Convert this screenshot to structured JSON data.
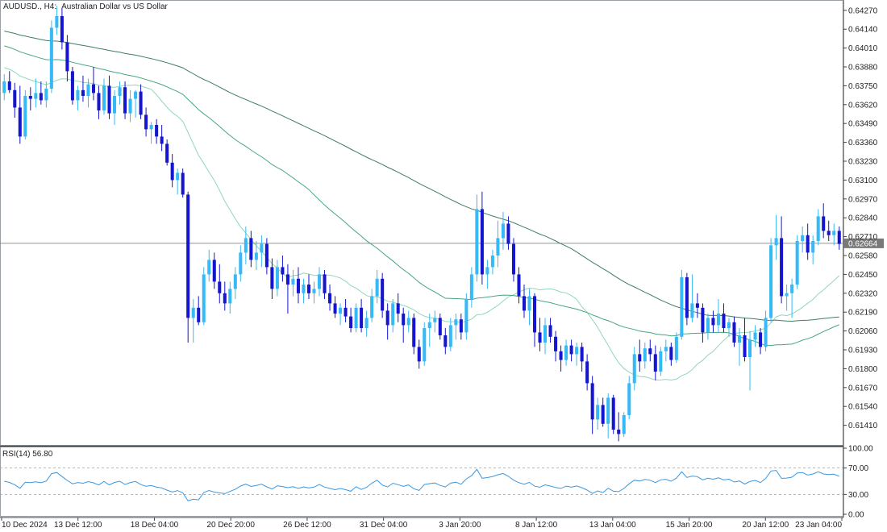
{
  "header": {
    "symbol": "AUDUSD.,",
    "timeframe": "H4:",
    "description": "Australian Dollar vs US Dollar"
  },
  "chart_data": [
    {
      "type": "candlestick",
      "title": "AUDUSD., H4: Australian Dollar vs US Dollar",
      "ylim": [
        0.6128,
        0.6433
      ],
      "y_ticks": [
        "0.64270",
        "0.64140",
        "0.64010",
        "0.63880",
        "0.63750",
        "0.63620",
        "0.63490",
        "0.63360",
        "0.63230",
        "0.63100",
        "0.62970",
        "0.62840",
        "0.62710",
        "0.62580",
        "0.62450",
        "0.62320",
        "0.62190",
        "0.62060",
        "0.61930",
        "0.61800",
        "0.61670",
        "0.61540",
        "0.61410"
      ],
      "x_ticks": [
        "10 Dec 2024",
        "13 Dec 12:00",
        "18 Dec 04:00",
        "20 Dec 20:00",
        "26 Dec 12:00",
        "31 Dec 04:00",
        "3 Jan 20:00",
        "8 Jan 12:00",
        "13 Jan 04:00",
        "15 Jan 20:00",
        "20 Jan 12:00",
        "23 Jan 04:00"
      ],
      "current_price": "0.62664",
      "bull_color": "#35baf6",
      "bear_color": "#1515d0",
      "ohlc": [
        [
          0.637,
          0.6383,
          0.6365,
          0.6378
        ],
        [
          0.6378,
          0.6385,
          0.637,
          0.6372
        ],
        [
          0.6372,
          0.6377,
          0.6353,
          0.636
        ],
        [
          0.636,
          0.6375,
          0.6335,
          0.634
        ],
        [
          0.634,
          0.6372,
          0.6338,
          0.6368
        ],
        [
          0.6368,
          0.6374,
          0.6358,
          0.6366
        ],
        [
          0.6366,
          0.638,
          0.636,
          0.637
        ],
        [
          0.637,
          0.6378,
          0.6362,
          0.6365
        ],
        [
          0.6365,
          0.6378,
          0.636,
          0.6373
        ],
        [
          0.6373,
          0.642,
          0.637,
          0.6415
        ],
        [
          0.6415,
          0.643,
          0.641,
          0.6423
        ],
        [
          0.6423,
          0.6428,
          0.64,
          0.6405
        ],
        [
          0.6405,
          0.641,
          0.6378,
          0.6385
        ],
        [
          0.6385,
          0.6388,
          0.6362,
          0.6365
        ],
        [
          0.6365,
          0.6375,
          0.6358,
          0.6372
        ],
        [
          0.6372,
          0.6382,
          0.6364,
          0.6368
        ],
        [
          0.6368,
          0.638,
          0.636,
          0.6376
        ],
        [
          0.6376,
          0.6388,
          0.6365,
          0.637
        ],
        [
          0.637,
          0.6375,
          0.6352,
          0.6358
        ],
        [
          0.6358,
          0.638,
          0.6355,
          0.6375
        ],
        [
          0.6375,
          0.6382,
          0.6352,
          0.6356
        ],
        [
          0.6356,
          0.6372,
          0.6348,
          0.6368
        ],
        [
          0.6368,
          0.6378,
          0.6362,
          0.6374
        ],
        [
          0.6374,
          0.6378,
          0.6352,
          0.6356
        ],
        [
          0.6356,
          0.6372,
          0.635,
          0.6366
        ],
        [
          0.6366,
          0.6372,
          0.6353,
          0.6371
        ],
        [
          0.6371,
          0.6376,
          0.6352,
          0.6355
        ],
        [
          0.6355,
          0.636,
          0.634,
          0.6345
        ],
        [
          0.6345,
          0.635,
          0.6335,
          0.6348
        ],
        [
          0.6348,
          0.6352,
          0.6335,
          0.634
        ],
        [
          0.634,
          0.6348,
          0.633,
          0.6335
        ],
        [
          0.6335,
          0.6338,
          0.632,
          0.6322
        ],
        [
          0.6322,
          0.6328,
          0.6305,
          0.631
        ],
        [
          0.631,
          0.6318,
          0.63,
          0.6315
        ],
        [
          0.6315,
          0.6318,
          0.6298,
          0.63
        ],
        [
          0.63,
          0.6302,
          0.6198,
          0.6215
        ],
        [
          0.6215,
          0.6228,
          0.6198,
          0.6222
        ],
        [
          0.6222,
          0.623,
          0.621,
          0.6212
        ],
        [
          0.6212,
          0.625,
          0.621,
          0.6245
        ],
        [
          0.6245,
          0.6262,
          0.624,
          0.6255
        ],
        [
          0.6255,
          0.626,
          0.6235,
          0.624
        ],
        [
          0.624,
          0.6252,
          0.6225,
          0.6232
        ],
        [
          0.6232,
          0.624,
          0.622,
          0.6225
        ],
        [
          0.6225,
          0.624,
          0.6218,
          0.6235
        ],
        [
          0.6235,
          0.625,
          0.6228,
          0.6245
        ],
        [
          0.6245,
          0.6265,
          0.624,
          0.626
        ],
        [
          0.626,
          0.6278,
          0.6252,
          0.627
        ],
        [
          0.627,
          0.6275,
          0.625,
          0.6255
        ],
        [
          0.6255,
          0.6268,
          0.6248,
          0.626
        ],
        [
          0.626,
          0.6272,
          0.625,
          0.6266
        ],
        [
          0.6266,
          0.627,
          0.6245,
          0.625
        ],
        [
          0.625,
          0.6256,
          0.6228,
          0.6235
        ],
        [
          0.6235,
          0.6255,
          0.623,
          0.625
        ],
        [
          0.625,
          0.6258,
          0.624,
          0.6245
        ],
        [
          0.6245,
          0.6252,
          0.6218,
          0.6238
        ],
        [
          0.6238,
          0.6248,
          0.623,
          0.6242
        ],
        [
          0.6242,
          0.625,
          0.6225,
          0.6232
        ],
        [
          0.6232,
          0.6242,
          0.6225,
          0.6238
        ],
        [
          0.6238,
          0.6245,
          0.6228,
          0.6232
        ],
        [
          0.6232,
          0.624,
          0.6225,
          0.6235
        ],
        [
          0.6235,
          0.625,
          0.623,
          0.6245
        ],
        [
          0.6245,
          0.6248,
          0.6228,
          0.6232
        ],
        [
          0.6232,
          0.6238,
          0.622,
          0.6225
        ],
        [
          0.6225,
          0.623,
          0.6215,
          0.6218
        ],
        [
          0.6218,
          0.6225,
          0.621,
          0.6222
        ],
        [
          0.6222,
          0.6228,
          0.6212,
          0.6216
        ],
        [
          0.6216,
          0.6222,
          0.6205,
          0.6208
        ],
        [
          0.6208,
          0.6225,
          0.6205,
          0.6222
        ],
        [
          0.6222,
          0.6228,
          0.6205,
          0.6208
        ],
        [
          0.6208,
          0.622,
          0.6202,
          0.6215
        ],
        [
          0.6215,
          0.6235,
          0.6212,
          0.623
        ],
        [
          0.623,
          0.6248,
          0.6225,
          0.6242
        ],
        [
          0.6242,
          0.6246,
          0.6215,
          0.622
        ],
        [
          0.622,
          0.6225,
          0.62,
          0.621
        ],
        [
          0.621,
          0.6228,
          0.6205,
          0.6225
        ],
        [
          0.6225,
          0.6232,
          0.6212,
          0.6218
        ],
        [
          0.6218,
          0.6222,
          0.6198,
          0.621
        ],
        [
          0.621,
          0.622,
          0.6205,
          0.6215
        ],
        [
          0.6215,
          0.6218,
          0.619,
          0.6195
        ],
        [
          0.6195,
          0.62,
          0.618,
          0.6185
        ],
        [
          0.6185,
          0.6212,
          0.6182,
          0.6208
        ],
        [
          0.6208,
          0.6218,
          0.6195,
          0.6212
        ],
        [
          0.6212,
          0.622,
          0.6205,
          0.6215
        ],
        [
          0.6215,
          0.6218,
          0.62,
          0.6203
        ],
        [
          0.6203,
          0.6208,
          0.619,
          0.6195
        ],
        [
          0.6195,
          0.6215,
          0.6192,
          0.621
        ],
        [
          0.621,
          0.6218,
          0.62,
          0.6214
        ],
        [
          0.6214,
          0.6218,
          0.62,
          0.6205
        ],
        [
          0.6205,
          0.6232,
          0.62,
          0.6228
        ],
        [
          0.6228,
          0.625,
          0.6222,
          0.6245
        ],
        [
          0.6245,
          0.63,
          0.624,
          0.629
        ],
        [
          0.629,
          0.6302,
          0.6238,
          0.6245
        ],
        [
          0.6245,
          0.6255,
          0.6235,
          0.625
        ],
        [
          0.625,
          0.6262,
          0.6245,
          0.6258
        ],
        [
          0.6258,
          0.6282,
          0.625,
          0.627
        ],
        [
          0.627,
          0.6288,
          0.6262,
          0.628
        ],
        [
          0.628,
          0.6285,
          0.6262,
          0.6266
        ],
        [
          0.6266,
          0.627,
          0.624,
          0.6245
        ],
        [
          0.6245,
          0.625,
          0.6225,
          0.623
        ],
        [
          0.623,
          0.6238,
          0.6215,
          0.622
        ],
        [
          0.622,
          0.6235,
          0.621,
          0.623
        ],
        [
          0.623,
          0.6232,
          0.6195,
          0.6205
        ],
        [
          0.6205,
          0.6215,
          0.6192,
          0.6198
        ],
        [
          0.6198,
          0.6215,
          0.619,
          0.621
        ],
        [
          0.621,
          0.6215,
          0.6198,
          0.6202
        ],
        [
          0.6202,
          0.6206,
          0.6185,
          0.6192
        ],
        [
          0.6192,
          0.6196,
          0.6178,
          0.6186
        ],
        [
          0.6186,
          0.62,
          0.6182,
          0.6196
        ],
        [
          0.6196,
          0.62,
          0.6185,
          0.619
        ],
        [
          0.619,
          0.6198,
          0.6182,
          0.6195
        ],
        [
          0.6195,
          0.6198,
          0.6178,
          0.6185
        ],
        [
          0.6185,
          0.619,
          0.6165,
          0.617
        ],
        [
          0.617,
          0.6175,
          0.6135,
          0.6145
        ],
        [
          0.6145,
          0.616,
          0.6138,
          0.6155
        ],
        [
          0.6155,
          0.616,
          0.614,
          0.6142
        ],
        [
          0.6142,
          0.6163,
          0.6132,
          0.616
        ],
        [
          0.616,
          0.6162,
          0.6135,
          0.6138
        ],
        [
          0.6138,
          0.615,
          0.613,
          0.6135
        ],
        [
          0.6135,
          0.615,
          0.6133,
          0.6148
        ],
        [
          0.6148,
          0.6175,
          0.6145,
          0.617
        ],
        [
          0.617,
          0.6195,
          0.6165,
          0.619
        ],
        [
          0.619,
          0.62,
          0.6178,
          0.6185
        ],
        [
          0.6185,
          0.6198,
          0.618,
          0.6194
        ],
        [
          0.6194,
          0.62,
          0.6185,
          0.619
        ],
        [
          0.619,
          0.6196,
          0.6172,
          0.6178
        ],
        [
          0.6178,
          0.6195,
          0.6175,
          0.6192
        ],
        [
          0.6192,
          0.62,
          0.6185,
          0.6195
        ],
        [
          0.6195,
          0.6198,
          0.6182,
          0.6186
        ],
        [
          0.6186,
          0.6205,
          0.6184,
          0.6202
        ],
        [
          0.6202,
          0.6248,
          0.62,
          0.6243
        ],
        [
          0.6243,
          0.6246,
          0.621,
          0.6215
        ],
        [
          0.6215,
          0.6245,
          0.6212,
          0.6225
        ],
        [
          0.6225,
          0.6232,
          0.6215,
          0.6222
        ],
        [
          0.6222,
          0.6225,
          0.6198,
          0.6205
        ],
        [
          0.6205,
          0.6218,
          0.62,
          0.6215
        ],
        [
          0.6215,
          0.622,
          0.6205,
          0.621
        ],
        [
          0.621,
          0.6228,
          0.6205,
          0.6218
        ],
        [
          0.6218,
          0.6225,
          0.6205,
          0.6208
        ],
        [
          0.6208,
          0.6215,
          0.6202,
          0.6212
        ],
        [
          0.6212,
          0.6216,
          0.6195,
          0.6198
        ],
        [
          0.6198,
          0.6208,
          0.6182,
          0.6203
        ],
        [
          0.6203,
          0.6215,
          0.6185,
          0.6188
        ],
        [
          0.6188,
          0.6206,
          0.6165,
          0.62
        ],
        [
          0.62,
          0.621,
          0.6195,
          0.6205
        ],
        [
          0.6205,
          0.6208,
          0.619,
          0.6195
        ],
        [
          0.6195,
          0.622,
          0.6192,
          0.6215
        ],
        [
          0.6215,
          0.627,
          0.6212,
          0.6265
        ],
        [
          0.6265,
          0.6286,
          0.6255,
          0.627
        ],
        [
          0.627,
          0.6285,
          0.6225,
          0.623
        ],
        [
          0.623,
          0.6238,
          0.622,
          0.6232
        ],
        [
          0.6232,
          0.6242,
          0.6215,
          0.6238
        ],
        [
          0.6238,
          0.6272,
          0.6235,
          0.6268
        ],
        [
          0.6268,
          0.6278,
          0.626,
          0.6272
        ],
        [
          0.6272,
          0.628,
          0.6255,
          0.626
        ],
        [
          0.626,
          0.6272,
          0.6252,
          0.6268
        ],
        [
          0.6268,
          0.629,
          0.6265,
          0.6285
        ],
        [
          0.6285,
          0.6294,
          0.627,
          0.6275
        ],
        [
          0.6275,
          0.6282,
          0.6268,
          0.6272
        ],
        [
          0.6272,
          0.628,
          0.6265,
          0.6275
        ],
        [
          0.6275,
          0.6278,
          0.6262,
          0.6266
        ]
      ]
    },
    {
      "type": "line",
      "series": [
        {
          "color": "#8fd8b4"
        },
        {
          "color": "#47a67e"
        },
        {
          "color": "#3d7d65"
        }
      ]
    },
    {
      "type": "line",
      "title": "RSI(14) 56.80",
      "ylim": [
        0,
        100
      ],
      "y_ticks": [
        "100.00",
        "70.00",
        "30.00",
        "0.00"
      ],
      "levels": [
        70,
        30
      ],
      "line_color": "#3a98e0"
    }
  ]
}
